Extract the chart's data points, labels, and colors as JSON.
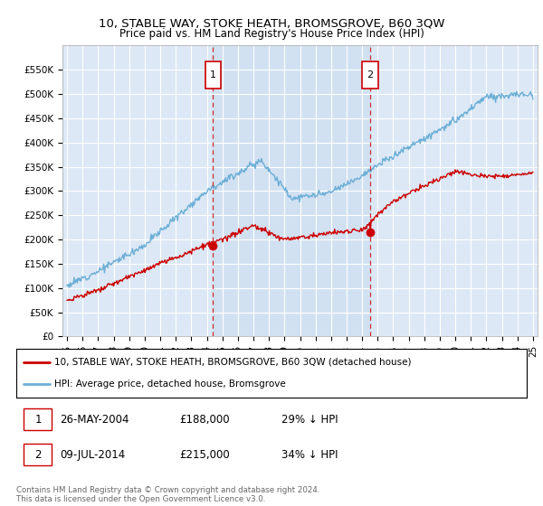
{
  "title": "10, STABLE WAY, STOKE HEATH, BROMSGROVE, B60 3QW",
  "subtitle": "Price paid vs. HM Land Registry's House Price Index (HPI)",
  "ylabel_ticks": [
    "£0",
    "£50K",
    "£100K",
    "£150K",
    "£200K",
    "£250K",
    "£300K",
    "£350K",
    "£400K",
    "£450K",
    "£500K",
    "£550K"
  ],
  "ytick_values": [
    0,
    50000,
    100000,
    150000,
    200000,
    250000,
    300000,
    350000,
    400000,
    450000,
    500000,
    550000
  ],
  "ylim": [
    0,
    600000
  ],
  "background_color": "#dce8f5",
  "hpi_color": "#6baed6",
  "price_color": "#cc0000",
  "marker1_year": 2004.38,
  "marker1_price": 188000,
  "marker2_year": 2014.52,
  "marker2_price": 215000,
  "marker1_label": "1",
  "marker2_label": "2",
  "marker1_date": "26-MAY-2004",
  "marker1_amount": "£188,000",
  "marker1_hpi": "29% ↓ HPI",
  "marker2_date": "09-JUL-2014",
  "marker2_amount": "£215,000",
  "marker2_hpi": "34% ↓ HPI",
  "legend_line1": "10, STABLE WAY, STOKE HEATH, BROMSGROVE, B60 3QW (detached house)",
  "legend_line2": "HPI: Average price, detached house, Bromsgrove",
  "footnote": "Contains HM Land Registry data © Crown copyright and database right 2024.\nThis data is licensed under the Open Government Licence v3.0.",
  "xtick_labels": [
    "95",
    "96",
    "97",
    "98",
    "99",
    "00",
    "01",
    "02",
    "03",
    "04",
    "05",
    "06",
    "07",
    "08",
    "09",
    "10",
    "11",
    "12",
    "13",
    "14",
    "15",
    "16",
    "17",
    "18",
    "19",
    "20",
    "21",
    "22",
    "23",
    "24",
    "25"
  ],
  "xtick_years": [
    1995,
    1996,
    1997,
    1998,
    1999,
    2000,
    2001,
    2002,
    2003,
    2004,
    2005,
    2006,
    2007,
    2008,
    2009,
    2010,
    2011,
    2012,
    2013,
    2014,
    2015,
    2016,
    2017,
    2018,
    2019,
    2020,
    2021,
    2022,
    2023,
    2024,
    2025
  ]
}
